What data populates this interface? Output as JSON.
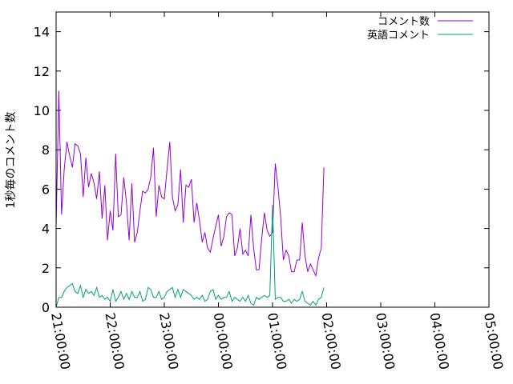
{
  "chart_data": {
    "type": "line",
    "title": "",
    "xlabel": "",
    "ylabel": "1秒毎のコメント数",
    "ylim": [
      0,
      15
    ],
    "xlim": [
      "21:00:00",
      "05:00:00"
    ],
    "y_ticks": [
      0,
      2,
      4,
      6,
      8,
      10,
      12,
      14
    ],
    "x_ticks": [
      "21:00:00",
      "22:00:00",
      "23:00:00",
      "00:00:00",
      "01:00:00",
      "02:00:00",
      "03:00:00",
      "04:00:00",
      "05:00:00"
    ],
    "grid": false,
    "legend_position": "top-right",
    "series": [
      {
        "name": "コメント数",
        "color": "#9400d3",
        "x_start": "21:00:00",
        "x_step_minutes": 3,
        "values": [
          4.1,
          11.0,
          4.7,
          7.0,
          8.4,
          7.7,
          7.1,
          8.3,
          8.2,
          7.8,
          5.6,
          7.6,
          6.1,
          6.8,
          6.3,
          5.5,
          6.9,
          4.5,
          6.2,
          3.4,
          4.9,
          3.9,
          7.8,
          4.6,
          4.7,
          6.6,
          5.3,
          3.4,
          6.3,
          3.3,
          3.8,
          4.9,
          5.9,
          5.8,
          6.0,
          6.6,
          8.1,
          4.6,
          6.2,
          5.6,
          5.5,
          7.0,
          8.4,
          5.6,
          4.9,
          5.2,
          7.0,
          4.3,
          6.2,
          6.1,
          6.5,
          4.3,
          5.3,
          4.4,
          3.3,
          3.8,
          3.0,
          2.8,
          3.5,
          4.1,
          4.7,
          3.1,
          3.6,
          4.6,
          4.8,
          4.7,
          2.6,
          3.0,
          4.0,
          2.7,
          2.9,
          2.6,
          4.7,
          3.0,
          1.9,
          1.9,
          3.5,
          4.8,
          3.9,
          3.6,
          3.8,
          7.3,
          6.1,
          4.6,
          2.4,
          2.9,
          2.6,
          1.8,
          1.8,
          2.4,
          2.4,
          4.3,
          2.6,
          1.8,
          2.2,
          1.9,
          1.6,
          2.5,
          3.0,
          7.1
        ]
      },
      {
        "name": "英語コメント",
        "color": "#009e73",
        "x_start": "21:00:00",
        "x_step_minutes": 3,
        "values": [
          0.0,
          0.5,
          0.5,
          0.8,
          1.0,
          1.1,
          1.2,
          0.8,
          0.7,
          1.1,
          0.5,
          0.9,
          0.7,
          0.8,
          0.6,
          1.0,
          0.5,
          0.6,
          0.4,
          0.5,
          0.3,
          0.9,
          0.3,
          0.5,
          0.8,
          0.4,
          0.7,
          0.4,
          0.8,
          0.5,
          0.5,
          0.8,
          0.3,
          0.4,
          1.0,
          0.9,
          0.5,
          0.5,
          0.8,
          0.4,
          0.5,
          0.8,
          0.9,
          1.0,
          0.5,
          0.9,
          0.5,
          0.9,
          0.8,
          0.7,
          0.6,
          0.4,
          0.5,
          0.4,
          0.6,
          0.3,
          0.4,
          0.8,
          0.9,
          0.4,
          0.6,
          0.4,
          0.5,
          0.5,
          0.8,
          0.3,
          0.5,
          0.4,
          0.3,
          0.5,
          0.3,
          0.6,
          0.2,
          0.1,
          0.5,
          0.4,
          0.5,
          0.6,
          0.5,
          0.6,
          5.2,
          0.4,
          0.5,
          0.5,
          0.3,
          0.3,
          0.4,
          0.2,
          0.4,
          0.3,
          0.4,
          0.8,
          0.3,
          0.2,
          0.1,
          0.3,
          0.1,
          0.4,
          0.5,
          1.0
        ]
      }
    ]
  }
}
